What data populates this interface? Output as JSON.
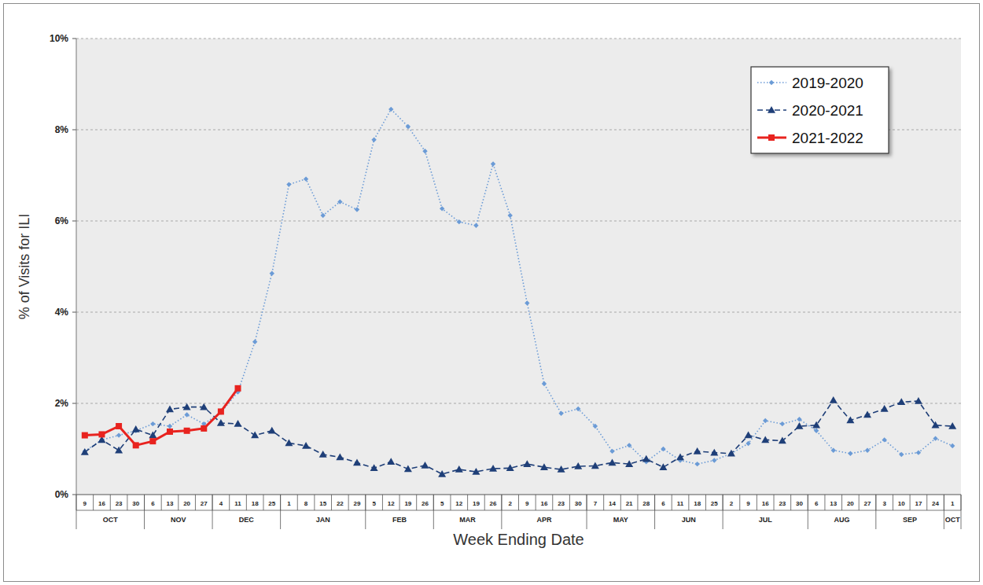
{
  "chart_data": {
    "type": "line",
    "x_label": "Week Ending Date",
    "y_label": "% of Visits for ILI",
    "categories": [
      "9",
      "16",
      "23",
      "30",
      "6",
      "13",
      "20",
      "27",
      "4",
      "11",
      "18",
      "25",
      "1",
      "8",
      "15",
      "22",
      "29",
      "5",
      "12",
      "19",
      "26",
      "5",
      "12",
      "19",
      "26",
      "2",
      "9",
      "16",
      "23",
      "30",
      "7",
      "14",
      "21",
      "28",
      "6",
      "11",
      "18",
      "25",
      "2",
      "9",
      "16",
      "23",
      "30",
      "6",
      "13",
      "20",
      "27",
      "3",
      "10",
      "17",
      "24",
      "1"
    ],
    "month_groups": [
      {
        "label": "OCT",
        "count": 4
      },
      {
        "label": "NOV",
        "count": 4
      },
      {
        "label": "DEC",
        "count": 4
      },
      {
        "label": "JAN",
        "count": 5
      },
      {
        "label": "FEB",
        "count": 4
      },
      {
        "label": "MAR",
        "count": 4
      },
      {
        "label": "APR",
        "count": 5
      },
      {
        "label": "MAY",
        "count": 4
      },
      {
        "label": "JUN",
        "count": 4
      },
      {
        "label": "JUL",
        "count": 5
      },
      {
        "label": "AUG",
        "count": 4
      },
      {
        "label": "SEP",
        "count": 4
      },
      {
        "label": "OCT",
        "count": 1
      }
    ],
    "ylim": [
      0,
      10
    ],
    "yticks": [
      {
        "value": 0,
        "label": "0%"
      },
      {
        "value": 2,
        "label": "2%"
      },
      {
        "value": 4,
        "label": "4%"
      },
      {
        "value": 6,
        "label": "6%"
      },
      {
        "value": 8,
        "label": "8%"
      },
      {
        "value": 10,
        "label": "10%"
      }
    ],
    "grid": true,
    "legend": "top-right",
    "series": [
      {
        "name": "2019-2020",
        "color": "#6b9bd6",
        "marker": "diamond",
        "line_style": "dotted",
        "values": [
          0.95,
          1.2,
          1.3,
          1.4,
          1.55,
          1.5,
          1.75,
          1.55,
          1.8,
          2.25,
          3.35,
          4.85,
          6.8,
          6.92,
          6.12,
          6.42,
          6.25,
          7.78,
          8.45,
          8.07,
          7.53,
          6.27,
          5.98,
          5.9,
          7.25,
          6.12,
          4.2,
          2.43,
          1.78,
          1.88,
          1.5,
          0.95,
          1.08,
          0.72,
          1.0,
          0.75,
          0.67,
          0.75,
          0.9,
          1.12,
          1.62,
          1.55,
          1.65,
          1.4,
          0.97,
          0.9,
          0.97,
          1.2,
          0.88,
          0.92,
          1.23,
          1.07
        ]
      },
      {
        "name": "2020-2021",
        "color": "#1f3f78",
        "marker": "triangle",
        "line_style": "dashed",
        "values": [
          0.93,
          1.2,
          0.97,
          1.43,
          1.3,
          1.87,
          1.92,
          1.92,
          1.57,
          1.55,
          1.3,
          1.4,
          1.13,
          1.07,
          0.88,
          0.82,
          0.7,
          0.58,
          0.72,
          0.56,
          0.64,
          0.45,
          0.55,
          0.5,
          0.57,
          0.58,
          0.67,
          0.6,
          0.55,
          0.62,
          0.63,
          0.7,
          0.67,
          0.78,
          0.6,
          0.82,
          0.95,
          0.92,
          0.9,
          1.3,
          1.2,
          1.18,
          1.5,
          1.52,
          2.07,
          1.63,
          1.75,
          1.88,
          2.03,
          2.05,
          1.52,
          1.5
        ]
      },
      {
        "name": "2021-2022",
        "color": "#e8231f",
        "marker": "square",
        "line_style": "solid",
        "values": [
          1.3,
          1.32,
          1.5,
          1.08,
          1.17,
          1.38,
          1.4,
          1.45,
          1.82,
          2.33,
          null,
          null,
          null,
          null,
          null,
          null,
          null,
          null,
          null,
          null,
          null,
          null,
          null,
          null,
          null,
          null,
          null,
          null,
          null,
          null,
          null,
          null,
          null,
          null,
          null,
          null,
          null,
          null,
          null,
          null,
          null,
          null,
          null,
          null,
          null,
          null,
          null,
          null,
          null,
          null,
          null,
          null
        ]
      }
    ]
  }
}
